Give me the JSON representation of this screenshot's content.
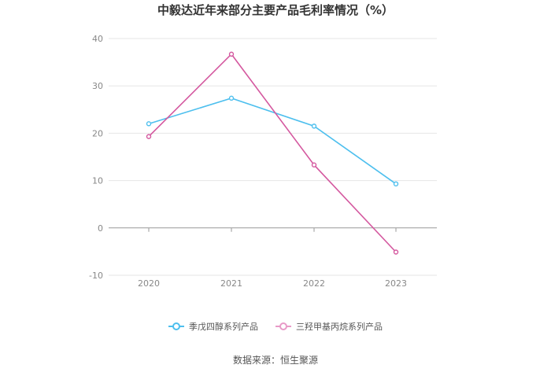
{
  "chart_data": {
    "type": "line",
    "title": "中毅达近年来部分主要产品毛利率情况（%）",
    "categories": [
      "2020",
      "2021",
      "2022",
      "2023"
    ],
    "yticks": [
      "40",
      "30",
      "20",
      "10",
      "0",
      "-10"
    ],
    "ylim": [
      -10,
      40
    ],
    "grid": true,
    "legend_position": "bottom",
    "series": [
      {
        "name": "季戊四醇系列产品",
        "color": "#4dbfee",
        "values": [
          22.0,
          27.4,
          21.5,
          9.3
        ]
      },
      {
        "name": "三羟甲基丙烷系列产品",
        "color": "#d4589f",
        "values": [
          19.3,
          36.7,
          13.3,
          -5.1
        ]
      }
    ]
  },
  "source": "数据来源：恒生聚源"
}
